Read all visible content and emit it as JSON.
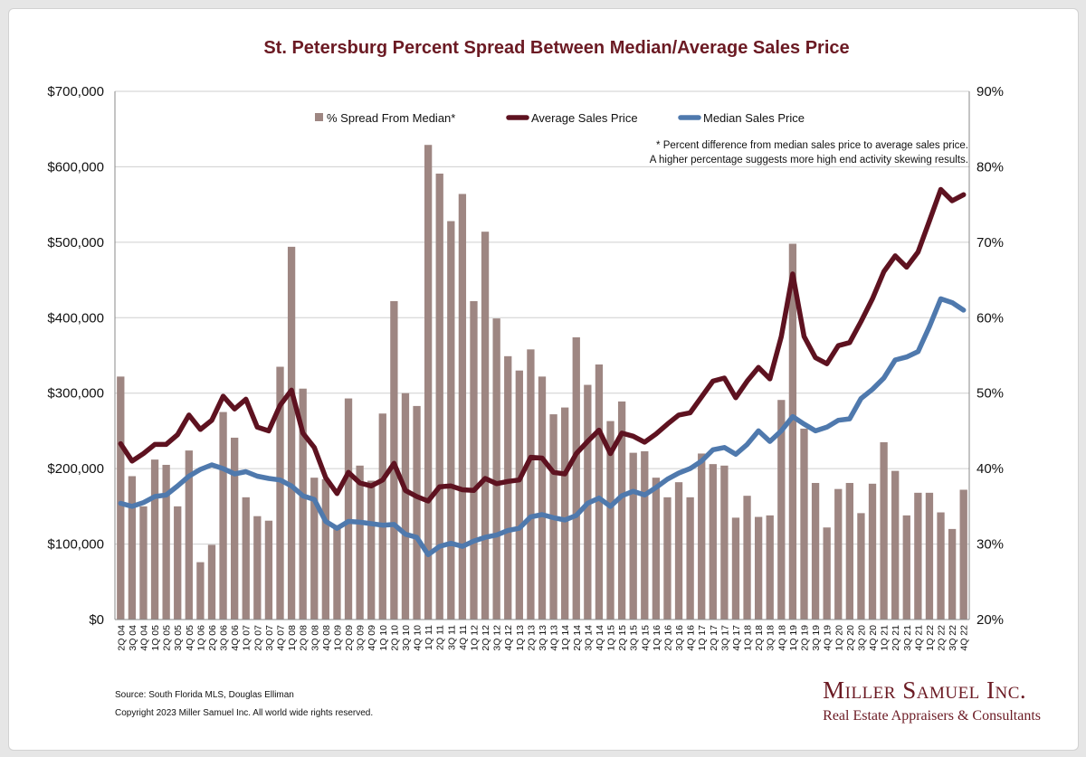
{
  "chart_data": {
    "type": "bar",
    "title": "St. Petersburg Percent Spread Between Median/Average Sales Price",
    "categories": [
      "2Q 04",
      "3Q 04",
      "4Q 04",
      "1Q 05",
      "2Q 05",
      "3Q 05",
      "4Q 05",
      "1Q 06",
      "2Q 06",
      "3Q 06",
      "4Q 06",
      "1Q 07",
      "2Q 07",
      "3Q 07",
      "4Q 07",
      "1Q 08",
      "2Q 08",
      "3Q 08",
      "4Q 08",
      "1Q 09",
      "2Q 09",
      "3Q 09",
      "4Q 09",
      "1Q 10",
      "2Q 10",
      "3Q 10",
      "4Q 10",
      "1Q 11",
      "2Q 11",
      "3Q 11",
      "4Q 11",
      "1Q 12",
      "2Q 12",
      "3Q 12",
      "4Q 12",
      "1Q 13",
      "2Q 13",
      "3Q 13",
      "4Q 13",
      "1Q 14",
      "2Q 14",
      "3Q 14",
      "4Q 14",
      "1Q 15",
      "2Q 15",
      "3Q 15",
      "4Q 15",
      "1Q 16",
      "2Q 16",
      "3Q 16",
      "4Q 16",
      "1Q 17",
      "2Q 17",
      "3Q 17",
      "4Q 17",
      "1Q 18",
      "2Q 18",
      "3Q 18",
      "4Q 18",
      "1Q 19",
      "2Q 19",
      "3Q 19",
      "4Q 19",
      "1Q 20",
      "2Q 20",
      "3Q 20",
      "4Q 20",
      "1Q 21",
      "2Q 21",
      "3Q 21",
      "4Q 21",
      "1Q 22",
      "2Q 22",
      "3Q 22",
      "4Q 22"
    ],
    "y_left": {
      "min": 0,
      "max": 700000,
      "ticks": [
        "$0",
        "$100,000",
        "$200,000",
        "$300,000",
        "$400,000",
        "$500,000",
        "$600,000",
        "$700,000"
      ]
    },
    "y_right": {
      "min": 20,
      "max": 90,
      "ticks": [
        "20%",
        "30%",
        "40%",
        "50%",
        "60%",
        "70%",
        "80%",
        "90%"
      ]
    },
    "grid": "horizontal",
    "legend_position": "top",
    "series": [
      {
        "name": "% Spread From Median*",
        "kind": "bar",
        "axis": "right",
        "color": "#9e8682",
        "values": [
          52.2,
          39,
          35,
          41.2,
          40.5,
          35,
          42.4,
          27.6,
          29.9,
          47.5,
          44.1,
          36.2,
          33.7,
          33.1,
          53.5,
          69.4,
          50.6,
          38.8,
          38.6,
          32.5,
          49.3,
          40.4,
          38.4,
          47.3,
          62.2,
          50,
          48.3,
          82.9,
          79.1,
          72.8,
          76.4,
          62.2,
          71.4,
          59.9,
          54.9,
          53,
          55.8,
          52.2,
          47.2,
          48.1,
          57.4,
          51.1,
          53.8,
          46.3,
          48.9,
          42.1,
          42.3,
          38.8,
          36.2,
          38.2,
          36.2,
          42,
          40.6,
          40.4,
          33.5,
          36.4,
          33.6,
          33.8,
          49.1,
          69.8,
          45.3,
          38.1,
          32.2,
          37.3,
          38.1,
          34.1,
          38,
          43.5,
          39.7,
          33.8,
          36.8,
          36.8,
          34.2,
          32,
          37.2
        ]
      },
      {
        "name": "Average Sales Price",
        "kind": "line",
        "axis": "left",
        "color": "#5e1220",
        "values": [
          233000,
          210000,
          220000,
          232000,
          232000,
          245000,
          271000,
          252000,
          264000,
          296000,
          279000,
          292000,
          255000,
          250000,
          284000,
          304000,
          247000,
          228000,
          188000,
          167000,
          195000,
          181000,
          177000,
          185000,
          207000,
          171000,
          163000,
          157000,
          176000,
          177000,
          172000,
          171000,
          187000,
          180000,
          183000,
          185000,
          215000,
          214000,
          195000,
          193000,
          220000,
          236000,
          251000,
          220000,
          247000,
          243000,
          235000,
          246000,
          259000,
          271000,
          274000,
          295000,
          316000,
          320000,
          294000,
          316000,
          334000,
          319000,
          375000,
          458000,
          375000,
          347000,
          339000,
          363000,
          367000,
          395000,
          425000,
          461000,
          482000,
          467000,
          487000,
          528000,
          570000,
          555000,
          563000
        ]
      },
      {
        "name": "Median Sales Price",
        "kind": "line",
        "axis": "left",
        "color": "#4f79ad",
        "values": [
          154000,
          150000,
          155000,
          163000,
          165000,
          177000,
          190000,
          199000,
          205000,
          200000,
          193000,
          196000,
          190000,
          187000,
          185000,
          177000,
          164000,
          159000,
          130000,
          121000,
          130000,
          129000,
          127000,
          125000,
          126000,
          113000,
          109000,
          86000,
          97000,
          101000,
          97000,
          104000,
          109000,
          112000,
          118000,
          121000,
          136000,
          139000,
          135000,
          132000,
          138000,
          154000,
          161000,
          150000,
          164000,
          170000,
          165000,
          175000,
          186000,
          194000,
          200000,
          210000,
          225000,
          228000,
          219000,
          232000,
          250000,
          236000,
          250000,
          269000,
          259000,
          250000,
          255000,
          264000,
          266000,
          293000,
          305000,
          320000,
          344000,
          348000,
          355000,
          388000,
          425000,
          420000,
          410000
        ]
      }
    ]
  },
  "note": {
    "line1": "*  Percent difference from median sales price to average sales price.",
    "line2": "A higher percentage suggests more high end activity skewing results."
  },
  "footer": {
    "source": "Source: South Florida MLS, Douglas Elliman",
    "copyright": "Copyright 2023 Miller Samuel Inc.  All world wide rights reserved."
  },
  "logo": {
    "name": "Miller Samuel Inc.",
    "tagline": "Real Estate Appraisers & Consultants"
  }
}
